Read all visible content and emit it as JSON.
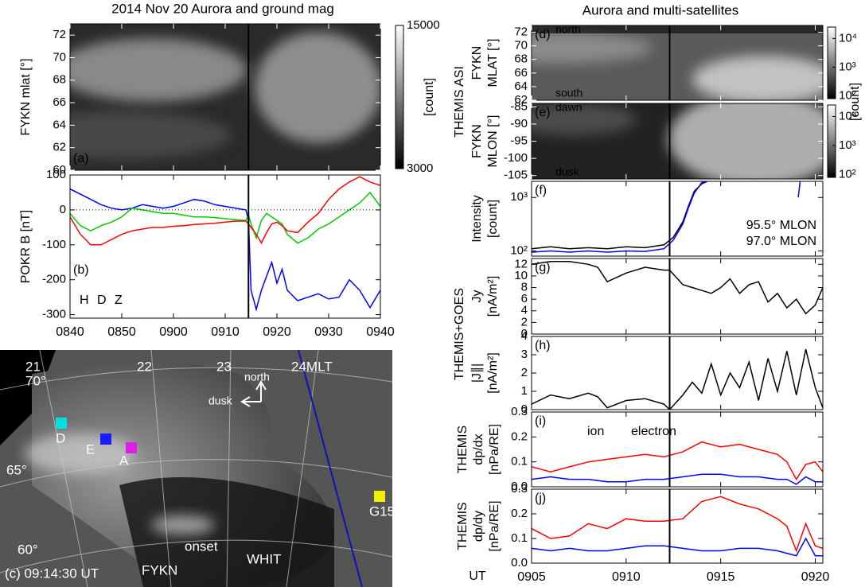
{
  "chart_data": [
    {
      "type": "image",
      "title": "2014 Nov 20   Aurora and ground mag",
      "ylabel": [
        "FYKN   mlat [°]"
      ],
      "panel_label": "(a)",
      "xlim": [
        520,
        580
      ],
      "xticks": [
        520,
        530,
        540,
        550,
        560,
        570,
        580
      ],
      "ylim": [
        60,
        73
      ],
      "yticks": [
        60,
        62,
        64,
        66,
        68,
        70,
        72
      ],
      "onset": 554.5,
      "cbar": {
        "lim": [
          3000,
          15000
        ],
        "ticks": [
          3000,
          15000
        ],
        "label": "[count]",
        "log": false
      }
    },
    {
      "type": "line",
      "ylabel": [
        "POKR B [nT]"
      ],
      "panel_label": "(b)",
      "legend": "lower left",
      "zero_line": true,
      "xtick_labels": true,
      "xlim": [
        520,
        580
      ],
      "xticks": [
        {
          "value": 520,
          "label": "0840"
        },
        {
          "value": 530,
          "label": "0850"
        },
        {
          "value": 540,
          "label": "0900"
        },
        {
          "value": 550,
          "label": "0910"
        },
        {
          "value": 560,
          "label": "0920"
        },
        {
          "value": 570,
          "label": "0930"
        },
        {
          "value": 580,
          "label": "0940"
        }
      ],
      "ylim": [
        -310,
        100
      ],
      "yticks": [
        -300,
        -200,
        -100,
        0,
        100
      ],
      "onset": 554.5,
      "x": [
        520,
        522,
        524,
        526,
        528,
        530,
        532,
        534,
        536,
        538,
        540,
        542,
        544,
        546,
        548,
        550,
        552,
        554,
        554.5,
        555,
        556,
        557,
        558,
        559,
        560,
        561,
        562,
        564,
        566,
        568,
        570,
        572,
        574,
        576,
        578,
        580
      ],
      "series": [
        {
          "name": "H",
          "color": "#0000ff",
          "values": [
            60,
            45,
            30,
            15,
            5,
            0,
            5,
            15,
            10,
            5,
            10,
            20,
            30,
            25,
            15,
            10,
            5,
            0,
            -30,
            -230,
            -285,
            -230,
            -190,
            -150,
            -210,
            -170,
            -230,
            -260,
            -250,
            -240,
            -255,
            -250,
            -200,
            -230,
            -280,
            -230
          ]
        },
        {
          "name": "D",
          "color": "#00cc00",
          "values": [
            -10,
            -45,
            -60,
            -45,
            -35,
            -20,
            5,
            0,
            -5,
            -10,
            -10,
            -15,
            -20,
            -20,
            -22,
            -25,
            -28,
            -30,
            -15,
            -40,
            -80,
            -30,
            -10,
            -20,
            -30,
            -40,
            -70,
            -95,
            -80,
            -55,
            -40,
            -20,
            0,
            20,
            50,
            10
          ]
        },
        {
          "name": "Z",
          "color": "#ff0000",
          "values": [
            -20,
            -70,
            -100,
            -100,
            -85,
            -70,
            -60,
            -55,
            -50,
            -50,
            -47,
            -45,
            -42,
            -40,
            -38,
            -35,
            -32,
            -32,
            -40,
            -50,
            -70,
            -95,
            -65,
            -40,
            -35,
            -45,
            -60,
            -65,
            -35,
            -10,
            30,
            60,
            80,
            95,
            80,
            70
          ]
        }
      ]
    },
    {
      "type": "image",
      "title": "Aurora and multi-satellites",
      "group_label": "THEMIS ASI",
      "ylabel": [
        "FYKN",
        "MLAT [°]"
      ],
      "panel_label": "(d)",
      "top_text": "north",
      "bottom_text": "south",
      "xlim": [
        545,
        560.4
      ],
      "xticks": [
        545,
        550,
        555,
        560
      ],
      "ylim": [
        62,
        73
      ],
      "yticks": [
        62,
        64,
        66,
        68,
        70,
        72
      ],
      "onset": 552.3,
      "cbar": {
        "lim": [
          80,
          25000
        ],
        "ticks": [
          {
            "value": 100,
            "label": "10²"
          },
          {
            "value": 1000,
            "label": "10³"
          },
          {
            "value": 10000,
            "label": "10⁴"
          }
        ],
        "label": "[count]",
        "log": true
      }
    },
    {
      "type": "image",
      "ylabel": [
        "FYKN",
        "MLON [°]"
      ],
      "panel_label": "(e)",
      "top_text": "dawn",
      "bottom_text": "dusk",
      "xlim": [
        545,
        560.4
      ],
      "xticks": [
        545,
        550,
        555,
        560
      ],
      "ylim": [
        -106,
        -84
      ],
      "yticks": [
        -105,
        -100,
        -95,
        -90,
        -85
      ],
      "onset": 552.3,
      "cbar": {
        "lim": [
          80,
          25000
        ],
        "ticks": [
          {
            "value": 100,
            "label": "10²"
          },
          {
            "value": 1000,
            "label": "10³"
          },
          {
            "value": 10000,
            "label": "10⁴"
          }
        ],
        "log": true
      }
    },
    {
      "type": "line",
      "ylabel": [
        "Intensity",
        "[count]"
      ],
      "panel_label": "(f)",
      "legend": "lower right",
      "ylog": true,
      "xlim": [
        545,
        560.4
      ],
      "xticks": [
        545,
        550,
        555,
        560
      ],
      "ylim": [
        80,
        2000
      ],
      "yticks": [
        {
          "value": 100,
          "label": "10²"
        },
        {
          "value": 1000,
          "label": "10³"
        }
      ],
      "onset": 552.3,
      "x": [
        545,
        546,
        547,
        548,
        549,
        550,
        551,
        552,
        552.5,
        553,
        553.3,
        553.6,
        554,
        554.3,
        556,
        559.1,
        559.2
      ],
      "series": [
        {
          "name": "95.5° MLON",
          "color": "#000000",
          "values": [
            110,
            120,
            110,
            115,
            110,
            120,
            115,
            130,
            180,
            350,
            700,
            1300,
            1800,
            2000,
            null,
            null,
            null
          ]
        },
        {
          "name": "97.0° MLON",
          "color": "#0000ff",
          "values": [
            95,
            100,
            95,
            100,
            95,
            100,
            98,
            110,
            160,
            320,
            650,
            1200,
            1900,
            2000,
            null,
            1000,
            2000
          ]
        }
      ]
    },
    {
      "type": "line",
      "group_label": "THEMIS+GOES",
      "ylabel": [
        "Jy",
        "[nA/m²]"
      ],
      "panel_label": "(g)",
      "xlim": [
        545,
        560.4
      ],
      "xticks": [
        545,
        550,
        555,
        560
      ],
      "ylim": [
        0,
        13
      ],
      "yticks": [
        0,
        2,
        4,
        6,
        8,
        10,
        12
      ],
      "onset": 552.3,
      "x": [
        545,
        546,
        547,
        548,
        548.5,
        549,
        550,
        551,
        552,
        552.3,
        553,
        553.5,
        554,
        554.5,
        555,
        555.5,
        556,
        556.5,
        557,
        557.5,
        558,
        558.5,
        559,
        559.5,
        560,
        560.4
      ],
      "series": [
        {
          "color": "#000000",
          "values": [
            12,
            12.5,
            12.5,
            12,
            11.5,
            9,
            10.5,
            11.5,
            11,
            11,
            8.5,
            8,
            7.5,
            7,
            8,
            9.5,
            7,
            8.5,
            9,
            5.5,
            7,
            4.5,
            6,
            3.5,
            5,
            8
          ]
        }
      ]
    },
    {
      "type": "line",
      "ylabel": [
        "|J∥|",
        "[nA/m²]"
      ],
      "panel_label": "(h)",
      "xlim": [
        545,
        560.4
      ],
      "xticks": [
        545,
        550,
        555,
        560
      ],
      "ylim": [
        0,
        4
      ],
      "yticks": [
        0,
        1,
        2,
        3,
        4
      ],
      "onset": 552.3,
      "x": [
        545,
        546,
        547,
        548,
        548.5,
        549,
        550,
        551,
        552,
        552.3,
        553,
        553.5,
        554,
        554.5,
        555,
        555.5,
        556,
        556.5,
        557,
        557.5,
        558,
        558.5,
        559,
        559.5,
        560,
        560.4
      ],
      "series": [
        {
          "color": "#000000",
          "values": [
            0.3,
            0.8,
            0.6,
            0.9,
            0.7,
            0.1,
            0.5,
            0.6,
            0.3,
            0,
            0.8,
            1.5,
            0.9,
            2.5,
            0.8,
            2,
            1.2,
            2.6,
            0.5,
            2.8,
            1,
            3.2,
            0.8,
            3.3,
            1.2,
            0.1
          ]
        }
      ]
    },
    {
      "type": "line",
      "ylabel": [
        "THEMIS",
        "dp/dx",
        "[nPa/RE]"
      ],
      "panel_label": "(i)",
      "legend": "upper center",
      "xlim": [
        545,
        560.4
      ],
      "xticks": [
        545,
        550,
        555,
        560
      ],
      "ylim": [
        0,
        0.3
      ],
      "yticks": [
        {
          "value": 0,
          "label": "0.0"
        },
        0.1,
        0.2,
        0.3
      ],
      "onset": 552.3,
      "x": [
        545,
        546,
        547,
        548,
        549,
        550,
        551,
        552,
        553,
        554,
        555,
        556,
        557,
        558,
        558.5,
        559,
        559.5,
        560,
        560.4
      ],
      "series": [
        {
          "name": "ion",
          "color": "#ff0000",
          "values": [
            0.08,
            0.06,
            0.08,
            0.1,
            0.11,
            0.12,
            0.13,
            0.12,
            0.14,
            0.18,
            0.16,
            0.17,
            0.15,
            0.13,
            0.1,
            0.03,
            0.09,
            0.1,
            0.06
          ]
        },
        {
          "name": "electron",
          "color": "#0000ff",
          "values": [
            0.03,
            0.04,
            0.03,
            0.03,
            0.02,
            0.02,
            0.03,
            0.03,
            0.04,
            0.05,
            0.05,
            0.04,
            0.04,
            0.03,
            0.03,
            0.01,
            0.04,
            0.02,
            0.02
          ]
        }
      ]
    },
    {
      "type": "line",
      "ylabel": [
        "THEMIS",
        "dp/dy",
        "[nPa/RE]"
      ],
      "panel_label": "(j)",
      "x_label": "UT",
      "xtick_labels": true,
      "xlim": [
        545,
        560.4
      ],
      "xticks": [
        {
          "value": 545,
          "label": "0905"
        },
        {
          "value": 550,
          "label": "0910"
        },
        {
          "value": 555,
          "label": "0915"
        },
        {
          "value": 560,
          "label": "0920"
        }
      ],
      "ylim": [
        0,
        0.3
      ],
      "yticks": [
        {
          "value": 0,
          "label": "0.0"
        },
        0.1,
        0.2,
        0.3
      ],
      "onset": 552.3,
      "x": [
        545,
        546,
        547,
        548,
        549,
        550,
        551,
        552,
        553,
        554,
        555,
        556,
        557,
        558,
        558.5,
        559,
        559.5,
        560,
        560.4
      ],
      "series": [
        {
          "color": "#ff0000",
          "values": [
            0.14,
            0.1,
            0.11,
            0.16,
            0.14,
            0.18,
            0.17,
            0.17,
            0.18,
            0.25,
            0.27,
            0.24,
            0.22,
            0.18,
            0.15,
            0.05,
            0.16,
            0.07,
            0.06
          ]
        },
        {
          "color": "#0000ff",
          "values": [
            0.06,
            0.05,
            0.06,
            0.05,
            0.05,
            0.06,
            0.07,
            0.07,
            0.06,
            0.05,
            0.05,
            0.06,
            0.06,
            0.05,
            0.04,
            0.03,
            0.1,
            0.03,
            0.03
          ]
        }
      ]
    }
  ],
  "map": {
    "mlt_labels": [
      "21",
      "22",
      "23",
      "24MLT"
    ],
    "lat_labels": [
      "70°",
      "65°",
      "60°"
    ],
    "compass": [
      "north",
      "dusk"
    ],
    "stations": [
      {
        "label": "D",
        "color": "#00e0e0"
      },
      {
        "label": "E",
        "color": "#1a1aff"
      },
      {
        "label": "A",
        "color": "#e020e0"
      },
      {
        "label": "G15",
        "color": "#f0f000"
      }
    ],
    "annotations": [
      "onset",
      "FYKN",
      "WHIT"
    ],
    "time_label": "(c) 09:14:30 UT"
  }
}
